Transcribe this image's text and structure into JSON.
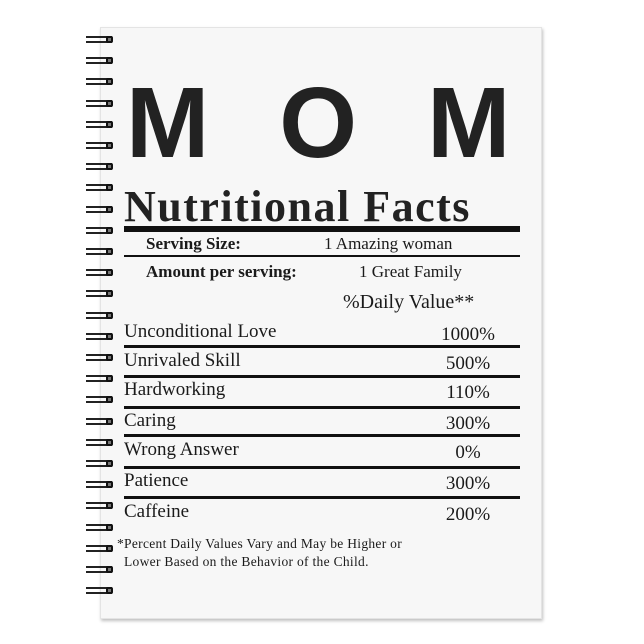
{
  "title": "MOM",
  "subtitle": "Nutritional Facts",
  "serving": {
    "label": "Serving Size:",
    "value": "1 Amazing woman"
  },
  "amount": {
    "label": "Amount per serving:",
    "value": "1 Great Family"
  },
  "daily_value_header": "%Daily Value**",
  "rows": [
    {
      "label": "Unconditional Love",
      "value": "1000%"
    },
    {
      "label": "Unrivaled Skill",
      "value": "500%"
    },
    {
      "label": "Hardworking",
      "value": "110%"
    },
    {
      "label": "Caring",
      "value": "300%"
    },
    {
      "label": "Wrong Answer",
      "value": "0%"
    },
    {
      "label": "Patience",
      "value": "300%"
    },
    {
      "label": "Caffeine",
      "value": "200%"
    }
  ],
  "footnote": {
    "line1": "*Percent Daily Values Vary and May be Higher or",
    "line2": "Lower Based on the Behavior of the Child."
  }
}
